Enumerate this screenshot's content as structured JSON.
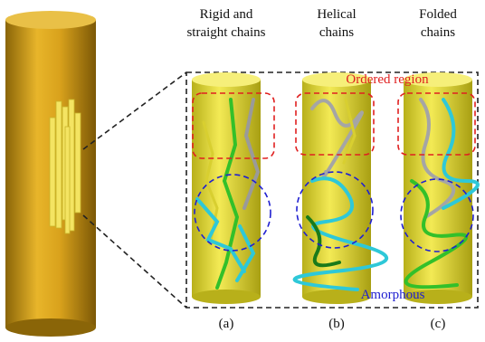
{
  "panels": [
    {
      "title_lines": [
        "Rigid and",
        "straight chains"
      ],
      "label": "(a)"
    },
    {
      "title_lines": [
        "Helical",
        "chains"
      ],
      "label": "(b)"
    },
    {
      "title_lines": [
        "Folded",
        "chains"
      ],
      "label": "(c)"
    }
  ],
  "annotations": {
    "ordered": "Ordered region",
    "amorphous": "Amorphous"
  }
}
